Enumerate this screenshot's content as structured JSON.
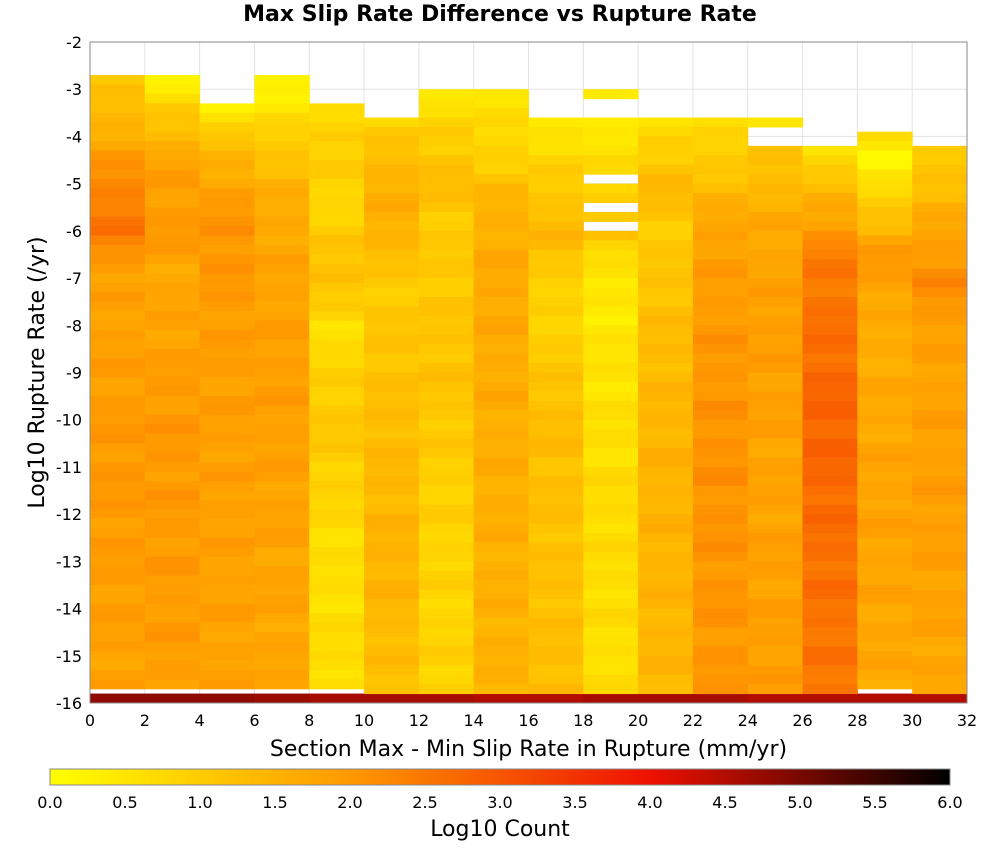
{
  "chart_data": {
    "type": "heatmap",
    "title": "Max Slip Rate Difference vs Rupture Rate",
    "xlabel": "Section Max - Min Slip Rate in Rupture (mm/yr)",
    "ylabel": "Log10 Rupture Rate (/yr)",
    "xlim": [
      0,
      32
    ],
    "ylim": [
      -16,
      -2
    ],
    "x_ticks": [
      0,
      2,
      4,
      6,
      8,
      10,
      12,
      14,
      16,
      18,
      20,
      22,
      24,
      26,
      28,
      30,
      32
    ],
    "y_ticks": [
      -2,
      -3,
      -4,
      -5,
      -6,
      -7,
      -8,
      -9,
      -10,
      -11,
      -12,
      -13,
      -14,
      -15,
      -16
    ],
    "x_bin_width": 2,
    "y_bin_height": 0.2,
    "grid": true,
    "colorbar": {
      "label": "Log10 Count",
      "range": [
        0.0,
        6.0
      ],
      "ticks": [
        "0.0",
        "0.5",
        "1.0",
        "1.5",
        "2.0",
        "2.5",
        "3.0",
        "3.5",
        "4.0",
        "4.5",
        "5.0",
        "5.5",
        "6.0"
      ],
      "colors": [
        "#ffff00",
        "#ff9900",
        "#ee1100",
        "#000000"
      ]
    },
    "columns": [
      {
        "x_range": [
          0,
          2
        ],
        "top": -2.7,
        "profile": [
          [
            -2.7,
            1.0
          ],
          [
            -4.0,
            1.6
          ],
          [
            -5.0,
            2.3
          ],
          [
            -6.0,
            2.5
          ],
          [
            -7.0,
            1.8
          ],
          [
            -11.0,
            2.0
          ],
          [
            -15.8,
            1.8
          ]
        ],
        "bottom_row": 4.8
      },
      {
        "x_range": [
          2,
          4
        ],
        "top": -2.7,
        "profile": [
          [
            -2.7,
            0.1
          ],
          [
            -3.5,
            1.0
          ],
          [
            -4.5,
            1.8
          ],
          [
            -6.0,
            2.0
          ],
          [
            -7.0,
            1.7
          ],
          [
            -10.0,
            2.0
          ],
          [
            -15.8,
            1.9
          ]
        ],
        "bottom_row": 4.8
      },
      {
        "x_range": [
          4,
          6
        ],
        "top": -3.3,
        "profile": [
          [
            -3.3,
            0.3
          ],
          [
            -4.0,
            1.1
          ],
          [
            -5.0,
            1.8
          ],
          [
            -6.0,
            2.1
          ],
          [
            -8.0,
            1.9
          ],
          [
            -15.8,
            1.8
          ]
        ],
        "bottom_row": 4.8
      },
      {
        "x_range": [
          6,
          8
        ],
        "top": -2.7,
        "profile": [
          [
            -2.7,
            0.1
          ],
          [
            -4.0,
            0.9
          ],
          [
            -5.0,
            1.5
          ],
          [
            -6.0,
            1.7
          ],
          [
            -9.0,
            1.9
          ],
          [
            -15.8,
            1.7
          ]
        ],
        "bottom_row": 4.7
      },
      {
        "x_range": [
          8,
          10
        ],
        "top": -3.3,
        "profile": [
          [
            -3.3,
            0.5
          ],
          [
            -4.0,
            1.0
          ],
          [
            -5.5,
            0.8
          ],
          [
            -7.0,
            1.3
          ],
          [
            -8.0,
            0.6
          ],
          [
            -10.0,
            1.1
          ],
          [
            -13.0,
            0.6
          ],
          [
            -15.8,
            0.7
          ]
        ],
        "bottom_row": 4.6
      },
      {
        "x_range": [
          10,
          12
        ],
        "top": -3.6,
        "profile": [
          [
            -3.6,
            0.7
          ],
          [
            -4.5,
            1.4
          ],
          [
            -6.0,
            1.6
          ],
          [
            -7.0,
            1.0
          ],
          [
            -10.0,
            1.3
          ],
          [
            -13.0,
            1.5
          ],
          [
            -15.8,
            1.2
          ]
        ],
        "bottom_row": 4.6
      },
      {
        "x_range": [
          12,
          14
        ],
        "top": -3.0,
        "profile": [
          [
            -3.0,
            0.3
          ],
          [
            -4.0,
            1.0
          ],
          [
            -5.0,
            1.3
          ],
          [
            -6.0,
            1.0
          ],
          [
            -9.0,
            1.2
          ],
          [
            -11.5,
            0.9
          ],
          [
            -14.0,
            0.8
          ],
          [
            -15.8,
            0.9
          ]
        ],
        "bottom_row": 4.6
      },
      {
        "x_range": [
          14,
          16
        ],
        "top": -3.0,
        "profile": [
          [
            -3.0,
            0.6
          ],
          [
            -4.0,
            0.7
          ],
          [
            -5.5,
            1.5
          ],
          [
            -7.0,
            1.7
          ],
          [
            -10.0,
            1.6
          ],
          [
            -15.8,
            1.5
          ]
        ],
        "bottom_row": 4.5
      },
      {
        "x_range": [
          16,
          18
        ],
        "top": -3.6,
        "profile": [
          [
            -3.6,
            0.4
          ],
          [
            -4.5,
            0.8
          ],
          [
            -6.0,
            1.4
          ],
          [
            -7.5,
            0.8
          ],
          [
            -10.0,
            1.3
          ],
          [
            -13.0,
            1.2
          ],
          [
            -15.8,
            1.3
          ]
        ],
        "bottom_row": 4.5
      },
      {
        "x_range": [
          18,
          20
        ],
        "top": -3.0,
        "profile": [
          [
            -3.0,
            0.2
          ],
          [
            -4.5,
            0.6
          ],
          [
            -6.0,
            1.2
          ],
          [
            -7.0,
            0.4
          ],
          [
            -10.0,
            0.6
          ],
          [
            -12.0,
            0.7
          ],
          [
            -15.8,
            0.6
          ]
        ],
        "bottom_row": 4.6
      },
      {
        "x_range": [
          20,
          22
        ],
        "top": -3.6,
        "profile": [
          [
            -3.6,
            0.5
          ],
          [
            -5.0,
            1.4
          ],
          [
            -6.0,
            1.0
          ],
          [
            -8.0,
            1.3
          ],
          [
            -11.0,
            1.5
          ],
          [
            -15.8,
            1.4
          ]
        ],
        "bottom_row": 4.6
      },
      {
        "x_range": [
          22,
          24
        ],
        "top": -3.6,
        "profile": [
          [
            -3.6,
            0.6
          ],
          [
            -4.5,
            1.0
          ],
          [
            -6.0,
            1.8
          ],
          [
            -8.0,
            2.0
          ],
          [
            -11.0,
            2.1
          ],
          [
            -15.8,
            2.0
          ]
        ],
        "bottom_row": 4.6
      },
      {
        "x_range": [
          24,
          26
        ],
        "top": -3.6,
        "profile": [
          [
            -3.6,
            0.4
          ],
          [
            -4.5,
            1.2
          ],
          [
            -6.0,
            1.7
          ],
          [
            -8.0,
            1.9
          ],
          [
            -11.0,
            1.8
          ],
          [
            -15.8,
            1.9
          ]
        ],
        "bottom_row": 4.5
      },
      {
        "x_range": [
          26,
          28
        ],
        "top": -4.2,
        "profile": [
          [
            -4.2,
            0.6
          ],
          [
            -5.5,
            1.6
          ],
          [
            -6.5,
            2.4
          ],
          [
            -8.0,
            2.6
          ],
          [
            -10.0,
            2.8
          ],
          [
            -13.0,
            2.6
          ],
          [
            -15.8,
            2.5
          ]
        ],
        "bottom_row": 4.5
      },
      {
        "x_range": [
          28,
          30
        ],
        "top": -3.9,
        "profile": [
          [
            -3.9,
            0.6
          ],
          [
            -4.5,
            0.2
          ],
          [
            -5.5,
            1.0
          ],
          [
            -6.5,
            2.0
          ],
          [
            -8.0,
            1.6
          ],
          [
            -12.0,
            1.8
          ],
          [
            -15.8,
            1.7
          ]
        ],
        "bottom_row": 4.5
      },
      {
        "x_range": [
          30,
          32
        ],
        "top": -4.2,
        "profile": [
          [
            -4.2,
            0.9
          ],
          [
            -5.5,
            1.5
          ],
          [
            -7.0,
            2.2
          ],
          [
            -8.5,
            1.8
          ],
          [
            -12.0,
            1.9
          ],
          [
            -15.8,
            1.7
          ]
        ],
        "bottom_row": 4.5
      }
    ],
    "gaps": [
      {
        "x_range": [
          18,
          20
        ],
        "y_range": [
          -3.3,
          -3.6
        ]
      },
      {
        "x_range": [
          24,
          26
        ],
        "y_range": [
          -3.9,
          -4.2
        ]
      },
      {
        "x_range": [
          18,
          20
        ],
        "y_range": [
          -4.8,
          -5.0
        ]
      },
      {
        "x_range": [
          18,
          20
        ],
        "y_range": [
          -5.4,
          -5.6
        ]
      },
      {
        "x_range": [
          18,
          20
        ],
        "y_range": [
          -5.9,
          -6.1
        ]
      }
    ]
  }
}
